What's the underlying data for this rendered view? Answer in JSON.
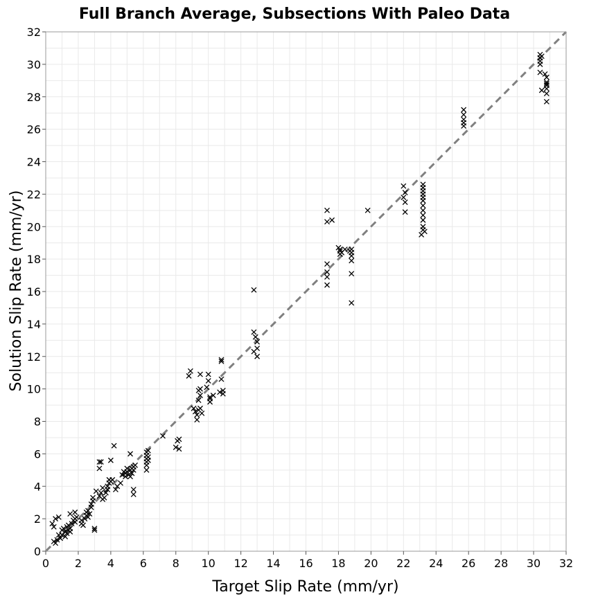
{
  "chart_data": {
    "type": "scatter",
    "title": "Full Branch Average, Subsections With Paleo Data",
    "xlabel": "Target Slip Rate (mm/yr)",
    "ylabel": "Solution Slip Rate (mm/yr)",
    "xlim": [
      0,
      32
    ],
    "ylim": [
      0,
      32
    ],
    "xticks": [
      0,
      2,
      4,
      6,
      8,
      10,
      12,
      14,
      16,
      18,
      20,
      22,
      24,
      26,
      28,
      30,
      32
    ],
    "yticks": [
      0,
      2,
      4,
      6,
      8,
      10,
      12,
      14,
      16,
      18,
      20,
      22,
      24,
      26,
      28,
      30,
      32
    ],
    "grid": true,
    "marker": "x",
    "marker_color": "#000000",
    "reference_line": {
      "from": [
        0,
        0
      ],
      "to": [
        32,
        32
      ],
      "style": "dashed",
      "color": "#808080"
    },
    "points": [
      [
        0.4,
        1.7
      ],
      [
        0.5,
        1.5
      ],
      [
        0.6,
        2.0
      ],
      [
        0.8,
        2.1
      ],
      [
        0.5,
        0.6
      ],
      [
        0.6,
        0.5
      ],
      [
        0.7,
        0.7
      ],
      [
        0.8,
        1.0
      ],
      [
        0.9,
        0.8
      ],
      [
        1.0,
        1.0
      ],
      [
        1.0,
        1.3
      ],
      [
        1.1,
        1.4
      ],
      [
        1.2,
        1.2
      ],
      [
        1.2,
        0.9
      ],
      [
        1.3,
        1.5
      ],
      [
        1.3,
        1.1
      ],
      [
        1.4,
        1.3
      ],
      [
        1.4,
        1.6
      ],
      [
        1.5,
        1.2
      ],
      [
        1.5,
        1.4
      ],
      [
        1.5,
        2.3
      ],
      [
        1.6,
        1.7
      ],
      [
        1.7,
        1.9
      ],
      [
        1.8,
        1.8
      ],
      [
        1.8,
        2.0
      ],
      [
        1.8,
        2.4
      ],
      [
        1.9,
        2.1
      ],
      [
        2.2,
        1.7
      ],
      [
        2.2,
        1.9
      ],
      [
        2.3,
        1.6
      ],
      [
        2.4,
        2.0
      ],
      [
        2.5,
        2.2
      ],
      [
        2.5,
        2.4
      ],
      [
        2.6,
        2.1
      ],
      [
        2.6,
        2.5
      ],
      [
        2.7,
        2.3
      ],
      [
        2.8,
        2.7
      ],
      [
        2.8,
        2.9
      ],
      [
        2.9,
        3.1
      ],
      [
        2.9,
        3.3
      ],
      [
        3.0,
        1.3
      ],
      [
        3.0,
        1.4
      ],
      [
        3.1,
        3.7
      ],
      [
        3.3,
        3.4
      ],
      [
        3.3,
        5.5
      ],
      [
        3.3,
        5.1
      ],
      [
        3.4,
        5.5
      ],
      [
        3.4,
        3.6
      ],
      [
        3.5,
        3.2
      ],
      [
        3.5,
        3.9
      ],
      [
        3.6,
        3.3
      ],
      [
        3.7,
        3.6
      ],
      [
        3.8,
        3.8
      ],
      [
        3.8,
        4.0
      ],
      [
        3.9,
        4.2
      ],
      [
        3.9,
        4.4
      ],
      [
        4.0,
        4.3
      ],
      [
        4.0,
        5.6
      ],
      [
        4.1,
        4.4
      ],
      [
        4.2,
        6.5
      ],
      [
        4.3,
        3.8
      ],
      [
        4.4,
        4.0
      ],
      [
        4.6,
        4.2
      ],
      [
        4.7,
        4.7
      ],
      [
        4.8,
        4.9
      ],
      [
        4.9,
        4.6
      ],
      [
        4.9,
        4.8
      ],
      [
        5.0,
        4.9
      ],
      [
        5.0,
        5.1
      ],
      [
        5.1,
        4.7
      ],
      [
        5.2,
        4.6
      ],
      [
        5.2,
        5.0
      ],
      [
        5.2,
        6.0
      ],
      [
        5.3,
        4.8
      ],
      [
        5.3,
        5.1
      ],
      [
        5.4,
        5.0
      ],
      [
        5.4,
        5.2
      ],
      [
        5.4,
        3.5
      ],
      [
        5.4,
        3.8
      ],
      [
        5.5,
        5.3
      ],
      [
        6.2,
        5.0
      ],
      [
        6.2,
        5.3
      ],
      [
        6.2,
        5.5
      ],
      [
        6.2,
        5.7
      ],
      [
        6.2,
        5.9
      ],
      [
        6.2,
        6.1
      ],
      [
        6.3,
        6.2
      ],
      [
        6.3,
        5.8
      ],
      [
        6.3,
        5.6
      ],
      [
        7.2,
        7.1
      ],
      [
        8.0,
        6.4
      ],
      [
        8.1,
        6.8
      ],
      [
        8.2,
        6.9
      ],
      [
        8.2,
        6.3
      ],
      [
        8.8,
        10.8
      ],
      [
        8.9,
        11.1
      ],
      [
        9.1,
        8.8
      ],
      [
        9.2,
        8.6
      ],
      [
        9.3,
        8.1
      ],
      [
        9.3,
        8.4
      ],
      [
        9.4,
        8.7
      ],
      [
        9.4,
        9.3
      ],
      [
        9.4,
        9.9
      ],
      [
        9.5,
        10.0
      ],
      [
        9.5,
        10.9
      ],
      [
        9.5,
        9.6
      ],
      [
        9.5,
        8.8
      ],
      [
        9.6,
        8.5
      ],
      [
        9.9,
        10.1
      ],
      [
        10.0,
        10.5
      ],
      [
        10.0,
        10.9
      ],
      [
        10.1,
        9.4
      ],
      [
        10.1,
        9.5
      ],
      [
        10.1,
        9.2
      ],
      [
        10.3,
        9.6
      ],
      [
        10.7,
        9.8
      ],
      [
        10.8,
        11.7
      ],
      [
        10.8,
        11.8
      ],
      [
        10.8,
        10.6
      ],
      [
        10.9,
        9.7
      ],
      [
        10.9,
        9.9
      ],
      [
        12.8,
        16.1
      ],
      [
        12.8,
        13.5
      ],
      [
        12.8,
        12.3
      ],
      [
        12.9,
        13.2
      ],
      [
        13.0,
        12.5
      ],
      [
        13.0,
        12.0
      ],
      [
        13.0,
        12.9
      ],
      [
        17.3,
        21.0
      ],
      [
        17.3,
        20.3
      ],
      [
        17.3,
        17.7
      ],
      [
        17.3,
        17.2
      ],
      [
        17.3,
        16.9
      ],
      [
        17.3,
        16.4
      ],
      [
        17.6,
        20.4
      ],
      [
        18.0,
        18.7
      ],
      [
        18.1,
        18.6
      ],
      [
        18.1,
        18.5
      ],
      [
        18.1,
        18.3
      ],
      [
        18.2,
        18.4
      ],
      [
        18.4,
        18.6
      ],
      [
        18.7,
        18.5
      ],
      [
        18.8,
        18.6
      ],
      [
        18.8,
        18.4
      ],
      [
        18.8,
        18.2
      ],
      [
        18.8,
        17.9
      ],
      [
        18.8,
        17.1
      ],
      [
        18.8,
        15.3
      ],
      [
        19.8,
        21.0
      ],
      [
        22.0,
        22.5
      ],
      [
        22.0,
        21.8
      ],
      [
        22.1,
        22.1
      ],
      [
        22.1,
        21.5
      ],
      [
        22.1,
        20.9
      ],
      [
        23.2,
        22.6
      ],
      [
        23.2,
        22.4
      ],
      [
        23.2,
        22.2
      ],
      [
        23.2,
        22.0
      ],
      [
        23.2,
        21.8
      ],
      [
        23.2,
        21.6
      ],
      [
        23.2,
        21.3
      ],
      [
        23.2,
        21.0
      ],
      [
        23.2,
        20.7
      ],
      [
        23.2,
        20.4
      ],
      [
        23.2,
        20.0
      ],
      [
        23.2,
        19.8
      ],
      [
        23.1,
        19.5
      ],
      [
        23.3,
        19.7
      ],
      [
        25.7,
        27.2
      ],
      [
        25.7,
        26.9
      ],
      [
        25.7,
        26.6
      ],
      [
        25.7,
        26.4
      ],
      [
        25.7,
        26.2
      ],
      [
        30.4,
        30.6
      ],
      [
        30.4,
        30.4
      ],
      [
        30.4,
        30.2
      ],
      [
        30.4,
        30.0
      ],
      [
        30.4,
        29.5
      ],
      [
        30.5,
        28.4
      ],
      [
        30.5,
        30.5
      ],
      [
        30.7,
        29.4
      ],
      [
        30.8,
        29.2
      ],
      [
        30.8,
        28.9
      ],
      [
        30.8,
        28.7
      ],
      [
        30.8,
        28.5
      ],
      [
        30.8,
        28.2
      ],
      [
        30.8,
        27.7
      ],
      [
        30.8,
        28.8
      ]
    ]
  }
}
